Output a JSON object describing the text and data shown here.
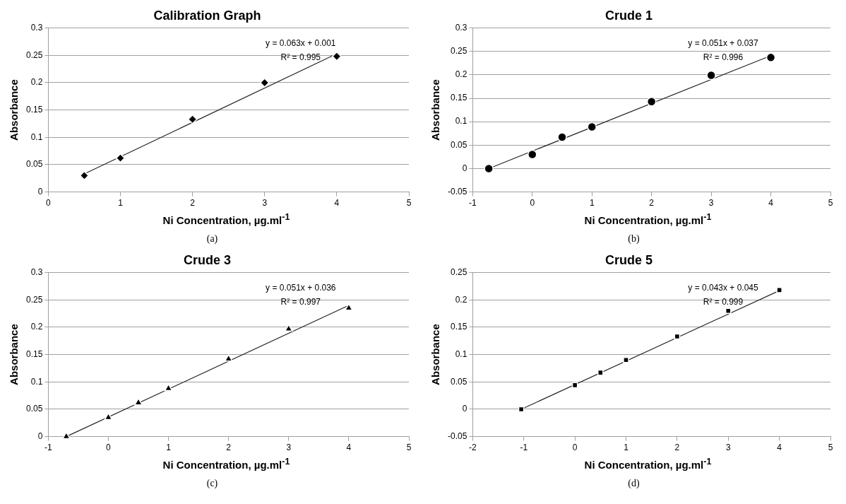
{
  "chart_data": [
    {
      "type": "scatter",
      "title": "Calibration Graph",
      "xlabel": "Ni Concentration, µg.ml$^{-1}$",
      "ylabel": "Absorbance",
      "xlim": [
        0,
        5
      ],
      "xticks": [
        0,
        1,
        2,
        3,
        4,
        5
      ],
      "ylim": [
        0,
        0.3
      ],
      "yticks": [
        0,
        0.05,
        0.1,
        0.15,
        0.2,
        0.25,
        0.3
      ],
      "grid": "y",
      "series": [
        {
          "marker": "diamond",
          "color": "#000000",
          "x": [
            0.5,
            1,
            2,
            3,
            4
          ],
          "values": [
            0.03,
            0.062,
            0.133,
            0.2,
            0.248
          ]
        },
        {
          "type": "line",
          "marker": "none",
          "color": "#262626",
          "x": [
            0.5,
            4
          ],
          "values": [
            0.033,
            0.253
          ]
        }
      ],
      "annotations": [
        "y = 0.063x + 0.001",
        "R² = 0.995",
        "(a)"
      ]
    },
    {
      "type": "scatter",
      "title": "Crude 1",
      "xlabel": "Ni Concentration, µg.ml$^{-1}$",
      "ylabel": "Absorbance",
      "xlim": [
        -1,
        5
      ],
      "xticks": [
        -1,
        0,
        1,
        2,
        3,
        4,
        5
      ],
      "ylim": [
        -0.05,
        0.3
      ],
      "yticks": [
        -0.05,
        0,
        0.05,
        0.1,
        0.15,
        0.2,
        0.25,
        0.3
      ],
      "grid": "y",
      "series": [
        {
          "marker": "circle",
          "color": "#000000",
          "x": [
            -0.73,
            0,
            0.5,
            1,
            2,
            3,
            4
          ],
          "values": [
            0,
            0.03,
            0.067,
            0.089,
            0.143,
            0.199,
            0.237
          ]
        },
        {
          "type": "line",
          "marker": "none",
          "color": "#262626",
          "x": [
            -0.73,
            4
          ],
          "values": [
            0,
            0.241
          ]
        }
      ],
      "annotations": [
        "y = 0.051x + 0.037",
        "R² = 0.996",
        "(b)"
      ]
    },
    {
      "type": "scatter",
      "title": "Crude 3",
      "xlabel": "Ni Concentration, µg.ml$^{-1}$",
      "ylabel": "Absorbance",
      "xlim": [
        -1,
        5
      ],
      "xticks": [
        -1,
        0,
        1,
        2,
        3,
        4,
        5
      ],
      "ylim": [
        0,
        0.3
      ],
      "yticks": [
        0,
        0.05,
        0.1,
        0.15,
        0.2,
        0.25,
        0.3
      ],
      "grid": "y",
      "series": [
        {
          "marker": "triangle",
          "color": "#000000",
          "x": [
            -0.7,
            0,
            0.5,
            1,
            2,
            3,
            4
          ],
          "values": [
            0,
            0.035,
            0.062,
            0.088,
            0.142,
            0.197,
            0.235
          ]
        },
        {
          "type": "line",
          "marker": "none",
          "color": "#262626",
          "x": [
            -0.7,
            4
          ],
          "values": [
            0,
            0.24
          ]
        }
      ],
      "annotations": [
        "y = 0.051x + 0.036",
        "R² = 0.997",
        "(c)"
      ]
    },
    {
      "type": "scatter",
      "title": "Crude 5",
      "xlabel": "Ni Concentration, µg.ml$^{-1}$",
      "ylabel": "Absorbance",
      "xlim": [
        -2,
        5
      ],
      "xticks": [
        -2,
        -1,
        0,
        1,
        2,
        3,
        4,
        5
      ],
      "ylim": [
        -0.05,
        0.25
      ],
      "yticks": [
        -0.05,
        0,
        0.05,
        0.1,
        0.15,
        0.2,
        0.25
      ],
      "grid": "y",
      "series": [
        {
          "marker": "square",
          "color": "#000000",
          "x": [
            -1.05,
            0,
            0.5,
            1,
            2,
            3,
            4
          ],
          "values": [
            0,
            0.044,
            0.067,
            0.09,
            0.133,
            0.18,
            0.218
          ]
        },
        {
          "type": "line",
          "marker": "none",
          "color": "#262626",
          "x": [
            -1.05,
            4
          ],
          "values": [
            0,
            0.217
          ]
        }
      ],
      "annotations": [
        "y = 0.043x + 0.045",
        "R² = 0.999",
        "(d)"
      ]
    }
  ]
}
